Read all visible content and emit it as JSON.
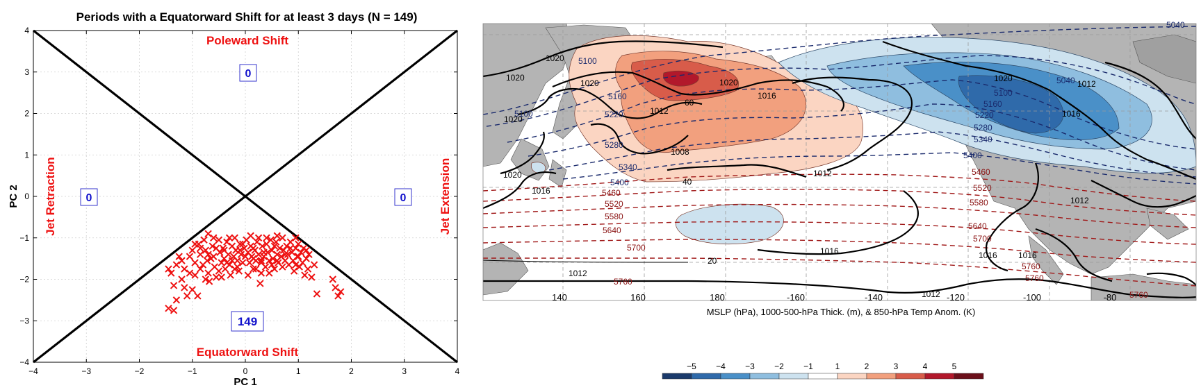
{
  "scatter": {
    "title": "Periods with a Equatorward Shift for at least 3 days (N = 149)",
    "xlabel": "PC 1",
    "ylabel": "PC 2",
    "x_ticks": [
      "−4",
      "−3",
      "−2",
      "−1",
      "0",
      "1",
      "2",
      "3",
      "4"
    ],
    "y_ticks": [
      "4",
      "3",
      "2",
      "1",
      "0",
      "−1",
      "−2",
      "−3",
      "−4"
    ],
    "regions": {
      "top": "Poleward Shift",
      "bottom": "Equatorward Shift",
      "left": "Jet Retraction",
      "right": "Jet Extension"
    },
    "counts": {
      "top": "0",
      "bottom": "149",
      "left": "0",
      "right": "0"
    },
    "colors": {
      "marker": "#ee1111",
      "label": "#ee1111",
      "count": "#1111cc"
    }
  },
  "chart_data": {
    "type": "scatter",
    "title": "Periods with a Equatorward Shift for at least 3 days (N = 149)",
    "xlabel": "PC 1",
    "ylabel": "PC 2",
    "xlim": [
      -4,
      4
    ],
    "ylim": [
      -4,
      4
    ],
    "grid": true,
    "marker": "x",
    "points": [
      [
        -1.45,
        -2.7
      ],
      [
        -1.35,
        -2.75
      ],
      [
        -1.3,
        -2.5
      ],
      [
        -1.35,
        -2.15
      ],
      [
        -1.4,
        -1.85
      ],
      [
        -1.45,
        -1.75
      ],
      [
        -1.3,
        -1.65
      ],
      [
        -1.2,
        -1.55
      ],
      [
        -1.15,
        -1.75
      ],
      [
        -1.2,
        -2.0
      ],
      [
        -1.15,
        -2.2
      ],
      [
        -1.1,
        -2.4
      ],
      [
        -1.05,
        -1.45
      ],
      [
        -1.0,
        -1.3
      ],
      [
        -0.95,
        -1.6
      ],
      [
        -0.95,
        -1.9
      ],
      [
        -1.0,
        -2.25
      ],
      [
        -0.9,
        -2.4
      ],
      [
        -0.88,
        -1.15
      ],
      [
        -0.85,
        -1.4
      ],
      [
        -0.8,
        -1.65
      ],
      [
        -0.78,
        -1.05
      ],
      [
        -0.75,
        -1.3
      ],
      [
        -0.72,
        -1.55
      ],
      [
        -0.7,
        -1.85
      ],
      [
        -0.68,
        -2.05
      ],
      [
        -0.7,
        -0.9
      ],
      [
        -0.62,
        -1.2
      ],
      [
        -0.6,
        -1.45
      ],
      [
        -0.58,
        -1.7
      ],
      [
        -0.55,
        -1.95
      ],
      [
        -0.5,
        -1.05
      ],
      [
        -0.48,
        -1.35
      ],
      [
        -0.45,
        -1.6
      ],
      [
        -0.42,
        -1.25
      ],
      [
        -0.4,
        -1.5
      ],
      [
        -0.38,
        -1.75
      ],
      [
        -0.35,
        -1.1
      ],
      [
        -0.32,
        -1.4
      ],
      [
        -0.3,
        -1.65
      ],
      [
        -0.28,
        -1.9
      ],
      [
        -0.25,
        -1.2
      ],
      [
        -0.22,
        -1.45
      ],
      [
        -0.2,
        -1.0
      ],
      [
        -0.18,
        -1.3
      ],
      [
        -0.15,
        -1.55
      ],
      [
        -0.12,
        -1.8
      ],
      [
        -0.1,
        -1.15
      ],
      [
        -0.08,
        -1.4
      ],
      [
        -0.05,
        -1.6
      ],
      [
        -0.02,
        -1.25
      ],
      [
        0.0,
        -1.45
      ],
      [
        0.02,
        -1.05
      ],
      [
        0.05,
        -1.35
      ],
      [
        0.08,
        -1.6
      ],
      [
        0.1,
        -1.2
      ],
      [
        0.12,
        -1.45
      ],
      [
        0.15,
        -1.75
      ],
      [
        0.18,
        -1.3
      ],
      [
        0.2,
        -1.55
      ],
      [
        0.22,
        -1.1
      ],
      [
        0.25,
        -1.4
      ],
      [
        0.28,
        -2.1
      ],
      [
        0.3,
        -1.6
      ],
      [
        0.32,
        -1.2
      ],
      [
        0.35,
        -1.45
      ],
      [
        0.38,
        -1.7
      ],
      [
        0.4,
        -1.15
      ],
      [
        0.42,
        -1.35
      ],
      [
        0.45,
        -1.55
      ],
      [
        0.48,
        -1.05
      ],
      [
        0.5,
        -1.3
      ],
      [
        0.52,
        -1.5
      ],
      [
        0.55,
        -1.75
      ],
      [
        0.58,
        -1.1
      ],
      [
        0.6,
        -1.4
      ],
      [
        0.62,
        -1.6
      ],
      [
        0.65,
        -1.25
      ],
      [
        0.68,
        -1.45
      ],
      [
        0.7,
        -1.0
      ],
      [
        0.72,
        -1.3
      ],
      [
        0.75,
        -1.55
      ],
      [
        0.78,
        -1.2
      ],
      [
        0.8,
        -1.4
      ],
      [
        0.82,
        -1.65
      ],
      [
        0.85,
        -1.1
      ],
      [
        0.88,
        -1.35
      ],
      [
        0.9,
        -1.55
      ],
      [
        0.92,
        -1.8
      ],
      [
        0.95,
        -1.25
      ],
      [
        0.98,
        -1.45
      ],
      [
        1.0,
        -1.15
      ],
      [
        1.02,
        -1.7
      ],
      [
        1.05,
        -1.35
      ],
      [
        1.08,
        -1.6
      ],
      [
        1.1,
        -1.25
      ],
      [
        1.12,
        -1.9
      ],
      [
        1.15,
        -1.5
      ],
      [
        1.18,
        -1.75
      ],
      [
        1.2,
        -1.4
      ],
      [
        1.25,
        -1.95
      ],
      [
        1.3,
        -1.65
      ],
      [
        1.35,
        -2.35
      ],
      [
        1.65,
        -2.0
      ],
      [
        1.7,
        -2.2
      ],
      [
        1.75,
        -2.4
      ],
      [
        1.8,
        -2.3
      ],
      [
        -0.6,
        -1.0
      ],
      [
        -0.3,
        -1.0
      ],
      [
        0.1,
        -0.95
      ],
      [
        0.4,
        -1.0
      ],
      [
        0.6,
        -0.95
      ],
      [
        -0.15,
        -1.7
      ],
      [
        0.3,
        -1.85
      ],
      [
        -0.45,
        -1.95
      ],
      [
        -0.65,
        -1.5
      ],
      [
        -0.85,
        -1.75
      ],
      [
        0.05,
        -1.9
      ],
      [
        0.45,
        -1.85
      ],
      [
        0.95,
        -1.65
      ],
      [
        -0.25,
        -1.55
      ],
      [
        0.15,
        -1.25
      ],
      [
        0.55,
        -1.2
      ],
      [
        -1.05,
        -1.85
      ],
      [
        -0.55,
        -1.25
      ],
      [
        -0.95,
        -1.15
      ],
      [
        0.25,
        -1.0
      ],
      [
        0.7,
        -1.7
      ],
      [
        -0.1,
        -1.3
      ],
      [
        0.35,
        -1.35
      ],
      [
        1.0,
        -1.45
      ],
      [
        -0.75,
        -2.0
      ],
      [
        -0.35,
        -1.6
      ],
      [
        0.6,
        -1.55
      ],
      [
        -0.2,
        -1.75
      ],
      [
        0.85,
        -1.25
      ],
      [
        -0.7,
        -1.4
      ],
      [
        0.15,
        -1.5
      ],
      [
        -0.5,
        -1.8
      ],
      [
        1.15,
        -1.3
      ],
      [
        -1.25,
        -1.45
      ],
      [
        0.5,
        -1.65
      ],
      [
        -0.05,
        -1.15
      ],
      [
        0.75,
        -1.4
      ],
      [
        -0.85,
        -1.25
      ],
      [
        0.3,
        -1.55
      ],
      [
        -0.4,
        -1.3
      ],
      [
        0.95,
        -1.0
      ],
      [
        0.2,
        -1.75
      ]
    ],
    "region_counts": {
      "Poleward Shift": 0,
      "Equatorward Shift": 149,
      "Jet Retraction": 0,
      "Jet Extension": 0
    }
  },
  "map": {
    "caption": "MSLP (hPa), 1000-500-hPa Thick. (m), & 850-hPa Temp Anom. (K)",
    "lon_labels": [
      "140",
      "160",
      "180",
      "-160",
      "-140",
      "-120",
      "-100",
      "-80"
    ],
    "mslp_labels": [
      "1020",
      "1020",
      "1020",
      "1020",
      "1012",
      "1008",
      "1016",
      "1020",
      "1012",
      "1020",
      "1016",
      "1016",
      "1016",
      "1012",
      "1012",
      "1016",
      "1020",
      "1012",
      "1016",
      "1012"
    ],
    "thickness_blue_labels": [
      "5100",
      "5100",
      "5160",
      "5220",
      "5280",
      "5340",
      "5400",
      "5100",
      "5160",
      "5220",
      "5280",
      "5340",
      "5400",
      "5040",
      "5040"
    ],
    "thickness_red_labels": [
      "5460",
      "5520",
      "5580",
      "5640",
      "5700",
      "5760",
      "5460",
      "5520",
      "5580",
      "5640",
      "5700",
      "5760",
      "5760",
      "5760"
    ],
    "anomaly_labels": [
      "60",
      "40",
      "20"
    ],
    "colorbar": {
      "labels": [
        "−5",
        "−4",
        "−3",
        "−2",
        "−1",
        "1",
        "2",
        "3",
        "4",
        "5"
      ],
      "colors": [
        "#1b3a6b",
        "#2f6aaa",
        "#4a90c8",
        "#8fbedf",
        "#cde2ef",
        "#ffffff",
        "#fbd5c2",
        "#f2a07e",
        "#d85c4a",
        "#b2182b",
        "#6b0f1a"
      ]
    }
  }
}
